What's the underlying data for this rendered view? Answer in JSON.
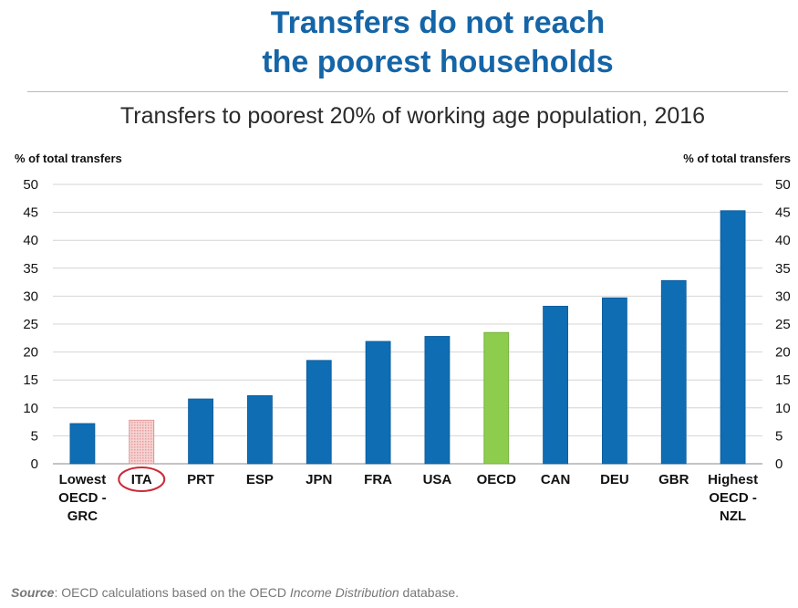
{
  "title_lines": [
    "Transfers do not reach",
    "the poorest households"
  ],
  "subtitle": "Transfers to poorest 20% of working age population, 2016",
  "colors": {
    "title": "#1565a7",
    "bar": "#0f6db4",
    "highlight_oecd": "#8dcc4c",
    "highlight_ita": "#e79d9d",
    "circle": "#cc2a36",
    "grid": "#d4d4d4"
  },
  "chart_data": {
    "type": "bar",
    "categories": [
      "Lowest OECD - GRC",
      "ITA",
      "PRT",
      "ESP",
      "JPN",
      "FRA",
      "USA",
      "OECD",
      "CAN",
      "DEU",
      "GBR",
      "Highest OECD - NZL"
    ],
    "category_label_lines": [
      [
        "Lowest",
        "OECD -",
        "GRC"
      ],
      [
        "ITA"
      ],
      [
        "PRT"
      ],
      [
        "ESP"
      ],
      [
        "JPN"
      ],
      [
        "FRA"
      ],
      [
        "USA"
      ],
      [
        "OECD"
      ],
      [
        "CAN"
      ],
      [
        "DEU"
      ],
      [
        "GBR"
      ],
      [
        "Highest",
        "OECD -",
        "NZL"
      ]
    ],
    "values": [
      7.2,
      7.8,
      11.6,
      12.2,
      18.5,
      21.9,
      22.8,
      23.5,
      28.2,
      29.7,
      32.8,
      45.3
    ],
    "bar_styles": [
      "normal",
      "hatched",
      "normal",
      "normal",
      "normal",
      "normal",
      "normal",
      "green",
      "normal",
      "normal",
      "normal",
      "normal"
    ],
    "circled_category": "ITA",
    "ylabel_left": "% of total transfers",
    "ylabel_right": "% of total transfers",
    "ylim": [
      0,
      50
    ],
    "yticks": [
      0,
      5,
      10,
      15,
      20,
      25,
      30,
      35,
      40,
      45,
      50
    ],
    "grid": true
  },
  "source": {
    "label": "Source",
    "text_before": ": OECD calculations based on the OECD ",
    "italic": "Income Distribution",
    "text_after": " database."
  }
}
